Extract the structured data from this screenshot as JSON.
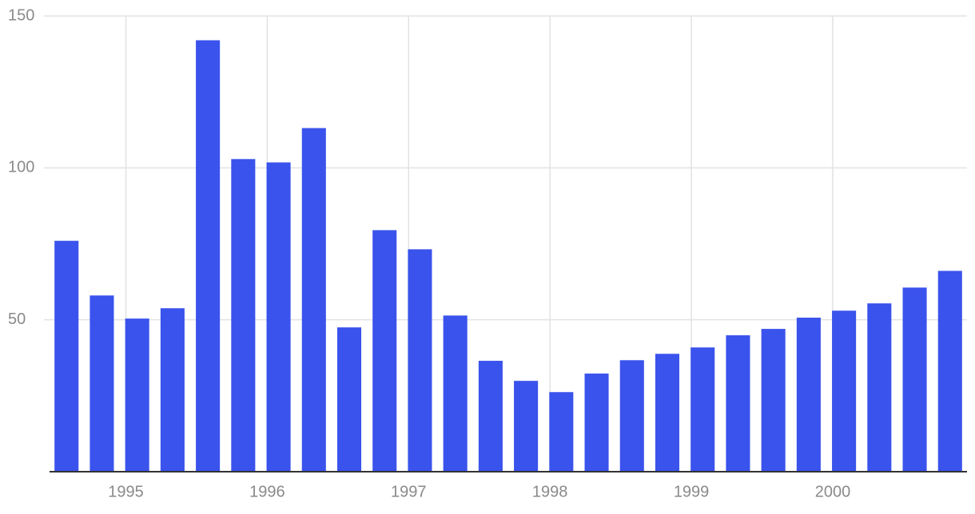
{
  "chart_data": {
    "type": "bar",
    "x": [
      1994.58,
      1994.83,
      1995.08,
      1995.33,
      1995.58,
      1995.83,
      1996.08,
      1996.33,
      1996.58,
      1996.83,
      1997.08,
      1997.33,
      1997.58,
      1997.83,
      1998.08,
      1998.33,
      1998.58,
      1998.83,
      1999.08,
      1999.33,
      1999.58,
      1999.83,
      2000.08,
      2000.33,
      2000.58,
      2000.83
    ],
    "values": [
      76,
      58,
      50.4,
      53.8,
      142,
      102.9,
      101.8,
      113.1,
      47.5,
      79.5,
      73.2,
      51.4,
      36.5,
      29.9,
      26.2,
      32.3,
      36.7,
      38.8,
      40.9,
      44.9,
      47,
      50.7,
      53,
      55.4,
      60.6,
      66.1
    ],
    "color": "#3a53ec",
    "xlim": [
      1994.46,
      2000.95
    ],
    "xticks": [
      1995,
      1996,
      1997,
      1998,
      1999,
      2000
    ],
    "ylim": [
      0,
      150
    ],
    "yticks": [
      50,
      100,
      150
    ],
    "grid": true
  }
}
